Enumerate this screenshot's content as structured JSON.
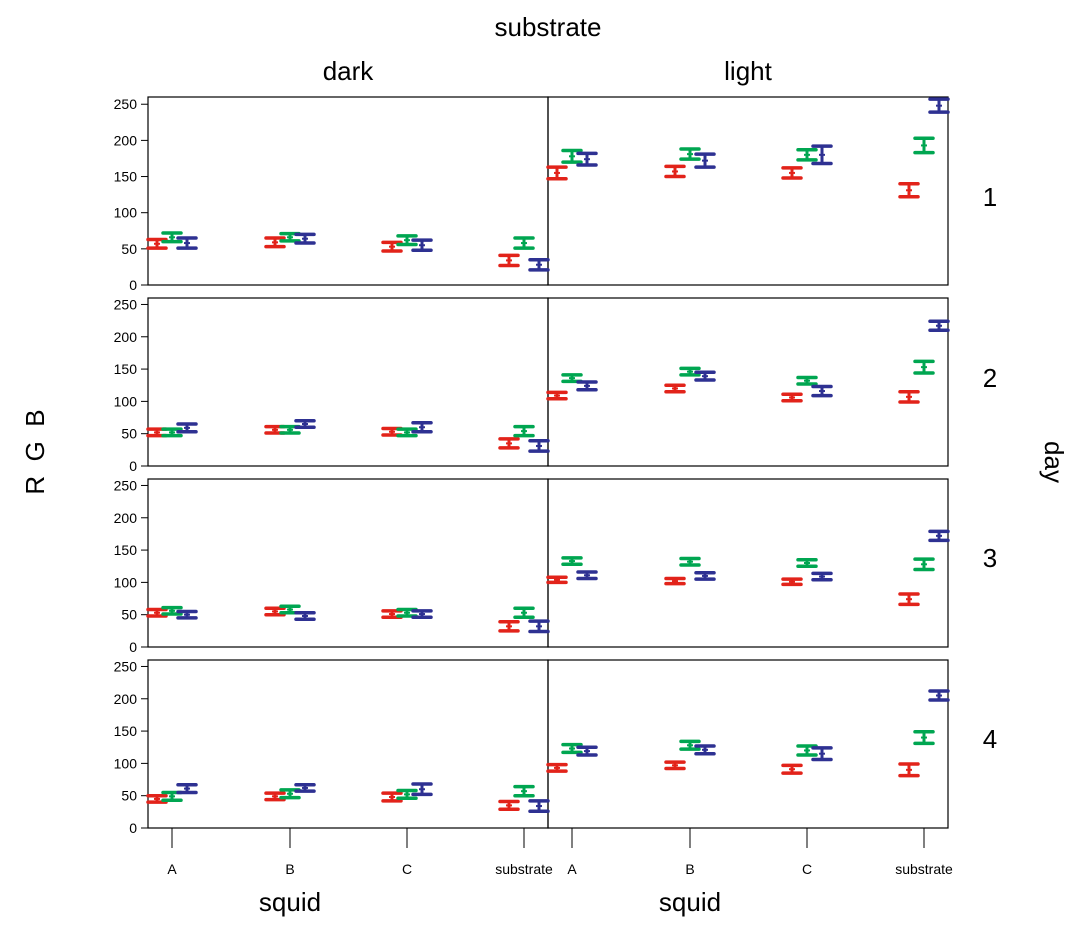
{
  "labels": {
    "col_title": "substrate",
    "col_names": [
      "dark",
      "light"
    ],
    "row_names": [
      "1",
      "2",
      "3",
      "4"
    ],
    "row_title": "day",
    "y_title": "R  G  B",
    "x_title": "squid"
  },
  "chart_data": {
    "type": "errorbar",
    "categories": [
      "A",
      "B",
      "C",
      "substrate"
    ],
    "series_names": [
      "R",
      "G",
      "B"
    ],
    "series_colors": [
      "#e2231a",
      "#00a651",
      "#2e3192"
    ],
    "yticks": [
      0,
      50,
      100,
      150,
      200,
      250
    ],
    "ylim": [
      0,
      260
    ],
    "grid": false,
    "panels": [
      {
        "day": "1",
        "substrate": "dark",
        "values": [
          [
            57,
            66,
            58
          ],
          [
            59,
            66,
            64
          ],
          [
            53,
            62,
            55
          ],
          [
            34,
            58,
            28
          ]
        ],
        "err": [
          [
            6,
            6,
            7
          ],
          [
            6,
            5,
            6
          ],
          [
            6,
            6,
            7
          ],
          [
            7,
            7,
            7
          ]
        ]
      },
      {
        "day": "1",
        "substrate": "light",
        "values": [
          [
            155,
            178,
            174
          ],
          [
            157,
            181,
            172
          ],
          [
            155,
            180,
            180
          ],
          [
            131,
            193,
            248
          ]
        ],
        "err": [
          [
            8,
            8,
            8
          ],
          [
            7,
            7,
            9
          ],
          [
            7,
            7,
            12
          ],
          [
            9,
            10,
            9
          ]
        ]
      },
      {
        "day": "2",
        "substrate": "dark",
        "values": [
          [
            52,
            52,
            59
          ],
          [
            56,
            56,
            65
          ],
          [
            53,
            52,
            60
          ],
          [
            35,
            54,
            31
          ]
        ],
        "err": [
          [
            5,
            5,
            6
          ],
          [
            5,
            5,
            5
          ],
          [
            5,
            5,
            7
          ],
          [
            7,
            7,
            8
          ]
        ]
      },
      {
        "day": "2",
        "substrate": "light",
        "values": [
          [
            109,
            136,
            124
          ],
          [
            120,
            146,
            139
          ],
          [
            106,
            132,
            116
          ],
          [
            107,
            153,
            217
          ]
        ],
        "err": [
          [
            5,
            5,
            6
          ],
          [
            5,
            5,
            6
          ],
          [
            5,
            5,
            7
          ],
          [
            8,
            9,
            7
          ]
        ]
      },
      {
        "day": "3",
        "substrate": "dark",
        "values": [
          [
            53,
            56,
            50
          ],
          [
            55,
            58,
            48
          ],
          [
            51,
            53,
            51
          ],
          [
            32,
            53,
            32
          ]
        ],
        "err": [
          [
            5,
            5,
            5
          ],
          [
            5,
            5,
            5
          ],
          [
            5,
            5,
            5
          ],
          [
            7,
            7,
            8
          ]
        ]
      },
      {
        "day": "3",
        "substrate": "light",
        "values": [
          [
            104,
            133,
            111
          ],
          [
            102,
            132,
            110
          ],
          [
            101,
            130,
            109
          ],
          [
            74,
            128,
            172
          ]
        ],
        "err": [
          [
            4,
            5,
            5
          ],
          [
            4,
            5,
            5
          ],
          [
            4,
            5,
            5
          ],
          [
            8,
            8,
            7
          ]
        ]
      },
      {
        "day": "4",
        "substrate": "dark",
        "values": [
          [
            45,
            49,
            61
          ],
          [
            49,
            53,
            62
          ],
          [
            48,
            52,
            60
          ],
          [
            35,
            57,
            34
          ]
        ],
        "err": [
          [
            5,
            6,
            6
          ],
          [
            5,
            6,
            5
          ],
          [
            6,
            6,
            8
          ],
          [
            6,
            7,
            8
          ]
        ]
      },
      {
        "day": "4",
        "substrate": "light",
        "values": [
          [
            93,
            123,
            119
          ],
          [
            97,
            128,
            121
          ],
          [
            91,
            120,
            115
          ],
          [
            90,
            140,
            205
          ]
        ],
        "err": [
          [
            5,
            6,
            6
          ],
          [
            5,
            6,
            6
          ],
          [
            6,
            7,
            9
          ],
          [
            9,
            9,
            7
          ]
        ]
      }
    ]
  }
}
